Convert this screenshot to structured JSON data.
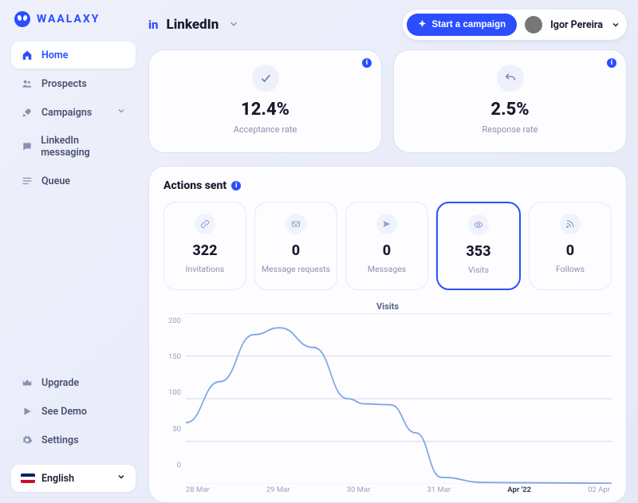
{
  "brand": {
    "name": "WAALAXY"
  },
  "sidebar": {
    "items": [
      {
        "label": "Home",
        "icon": "home",
        "active": true
      },
      {
        "label": "Prospects",
        "icon": "users"
      },
      {
        "label": "Campaigns",
        "icon": "rocket",
        "chevron": true
      },
      {
        "label": "LinkedIn messaging",
        "icon": "chat"
      },
      {
        "label": "Queue",
        "icon": "queue"
      }
    ],
    "bottom": [
      {
        "label": "Upgrade",
        "icon": "crown"
      },
      {
        "label": "See Demo",
        "icon": "play"
      },
      {
        "label": "Settings",
        "icon": "gear"
      }
    ],
    "language": "English"
  },
  "topbar": {
    "channel": "LinkedIn",
    "in_label": "in",
    "start_label": "Start a campaign",
    "user_name": "Igor Pereira"
  },
  "kpis": [
    {
      "icon": "check",
      "value": "12.4%",
      "label": "Acceptance rate"
    },
    {
      "icon": "reply",
      "value": "2.5%",
      "label": "Response rate"
    }
  ],
  "actions": {
    "title": "Actions sent",
    "cards": [
      {
        "icon": "link",
        "value": "322",
        "label": "Invitations",
        "selected": false
      },
      {
        "icon": "mail",
        "value": "0",
        "label": "Message requests",
        "selected": false
      },
      {
        "icon": "send",
        "value": "0",
        "label": "Messages",
        "selected": false
      },
      {
        "icon": "eye",
        "value": "353",
        "label": "Visits",
        "selected": true
      },
      {
        "icon": "rss",
        "value": "0",
        "label": "Follows",
        "selected": false
      }
    ]
  },
  "chart": {
    "title": "Visits",
    "type": "line",
    "y": {
      "lim": [
        0,
        200
      ],
      "ticks": [
        200,
        150,
        100,
        50,
        0
      ]
    },
    "x": {
      "labels": [
        "28 Mar",
        "29 Mar",
        "30 Mar",
        "31 Mar",
        "Apr '22",
        "02 Apr"
      ],
      "bold_index": 4
    },
    "series": {
      "color": "#7fa8e6",
      "stroke_width": 1.6,
      "points": [
        {
          "x": 0.0,
          "y": 72
        },
        {
          "x": 0.08,
          "y": 120
        },
        {
          "x": 0.16,
          "y": 175
        },
        {
          "x": 0.22,
          "y": 183
        },
        {
          "x": 0.3,
          "y": 160
        },
        {
          "x": 0.38,
          "y": 100
        },
        {
          "x": 0.42,
          "y": 94
        },
        {
          "x": 0.48,
          "y": 93
        },
        {
          "x": 0.54,
          "y": 60
        },
        {
          "x": 0.6,
          "y": 8
        },
        {
          "x": 0.7,
          "y": 2
        },
        {
          "x": 1.0,
          "y": 1
        }
      ]
    },
    "grid_color": "#d8dcee",
    "background": "#fdfdff"
  },
  "colors": {
    "accent": "#2b4eff",
    "text_muted": "#8a90b0",
    "card_border": "#e6e9f6"
  }
}
